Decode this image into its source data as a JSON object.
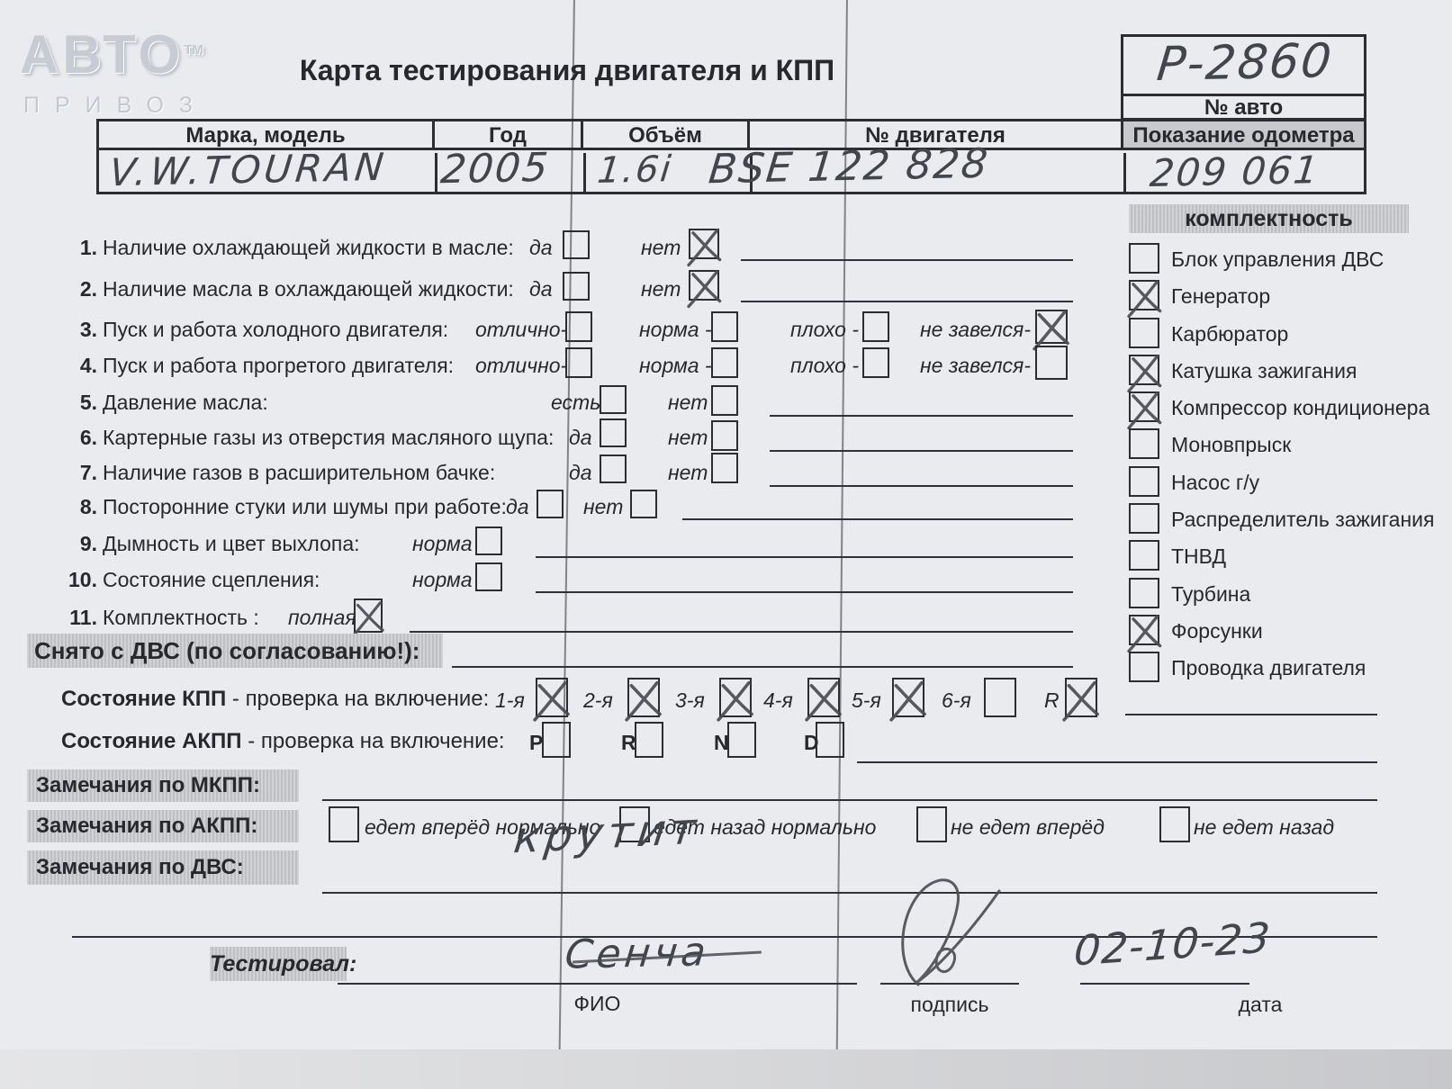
{
  "logo": {
    "name": "АВТО",
    "tm": "ТМ",
    "sub": "ПРИВОЗ"
  },
  "title": "Карта тестирования двигателя и КПП",
  "auto_number": {
    "value": "Р-2860",
    "label": "№ авто"
  },
  "vehicle": {
    "brand_header": "Марка, модель",
    "brand_value": "V.W.TOURAN",
    "year_header": "Год",
    "year_value": "2005",
    "volume_header": "Объём",
    "volume_value": "1.6i",
    "engine_header": "№ двигателя",
    "engine_value": "BSE 122 828",
    "odometer_header": "Показание одометра",
    "odometer_value": "209 061"
  },
  "checklist": [
    {
      "num": "1.",
      "label": "Наличие охлаждающей жидкости в масле:",
      "opt1": "да",
      "opt2": "нет",
      "checked1": false,
      "checked2": true
    },
    {
      "num": "2.",
      "label": "Наличие масла в охлаждающей жидкости:",
      "opt1": "да",
      "opt2": "нет",
      "checked1": false,
      "checked2": true
    },
    {
      "num": "3.",
      "label": "Пуск и работа холодного двигателя:",
      "opt1": "отлично-",
      "opt2": "норма -",
      "opt3": "плохо -",
      "opt4": "не завелся-",
      "checked1": false,
      "checked2": false,
      "checked3": false,
      "checked4": true
    },
    {
      "num": "4.",
      "label": "Пуск и работа прогретого двигателя:",
      "opt1": "отлично-",
      "opt2": "норма -",
      "opt3": "плохо -",
      "opt4": "не завелся-",
      "checked1": false,
      "checked2": false,
      "checked3": false,
      "checked4": false
    },
    {
      "num": "5.",
      "label": "Давление масла:",
      "opt1": "есть",
      "opt2": "нет",
      "checked1": false,
      "checked2": false
    },
    {
      "num": "6.",
      "label": "Картерные газы из отверстия масляного щупа:",
      "opt1": "да",
      "opt2": "нет",
      "checked1": false,
      "checked2": false
    },
    {
      "num": "7.",
      "label": "Наличие газов в расширительном бачке:",
      "opt1": "да",
      "opt2": "нет",
      "checked1": false,
      "checked2": false
    },
    {
      "num": "8.",
      "label": "Посторонние стуки или шумы при работе:",
      "opt1": "да",
      "opt2": "нет",
      "checked1": false,
      "checked2": false
    },
    {
      "num": "9.",
      "label": "Дымность и цвет выхлопа:",
      "opt1": "норма",
      "checked1": false
    },
    {
      "num": "10.",
      "label": "Состояние сцепления:",
      "opt1": "норма",
      "checked1": false
    },
    {
      "num": "11.",
      "label": "Комплектность :",
      "opt1": "полная",
      "checked1": true
    }
  ],
  "equipment": {
    "header": "комплектность",
    "items": [
      {
        "label": "Блок управления ДВС",
        "checked": false
      },
      {
        "label": "Генератор",
        "checked": true
      },
      {
        "label": "Карбюратор",
        "checked": false
      },
      {
        "label": "Катушка зажигания",
        "checked": true
      },
      {
        "label": "Компрессор кондиционера",
        "checked": true
      },
      {
        "label": "Моновпрыск",
        "checked": false
      },
      {
        "label": "Насос г/у",
        "checked": false
      },
      {
        "label": "Распределитель зажигания",
        "checked": false
      },
      {
        "label": "ТНВД",
        "checked": false
      },
      {
        "label": "Турбина",
        "checked": false
      },
      {
        "label": "Форсунки",
        "checked": true
      },
      {
        "label": "Проводка двигателя",
        "checked": false
      }
    ]
  },
  "removed": {
    "label": "Снято с ДВС (по согласованию!):"
  },
  "kpp": {
    "bold": "Состояние КПП",
    "rest": " - проверка на включение:",
    "gears": [
      {
        "label": "1-я",
        "checked": true
      },
      {
        "label": "2-я",
        "checked": true
      },
      {
        "label": "3-я",
        "checked": true
      },
      {
        "label": "4-я",
        "checked": true
      },
      {
        "label": "5-я",
        "checked": true
      },
      {
        "label": "6-я",
        "checked": false
      },
      {
        "label": "R",
        "checked": true
      }
    ]
  },
  "akpp": {
    "bold": "Состояние АКПП",
    "rest": " - проверка на включение:",
    "gears": [
      {
        "label": "P",
        "checked": false
      },
      {
        "label": "R",
        "checked": false
      },
      {
        "label": "N",
        "checked": false
      },
      {
        "label": "D",
        "checked": false
      }
    ]
  },
  "remarks_mkpp": {
    "label": "Замечания по МКПП:"
  },
  "remarks_akpp": {
    "label": "Замечания по АКПП:",
    "options": [
      {
        "label": "едет вперёд нормально",
        "checked": false
      },
      {
        "label": "едет назад нормально",
        "checked": false
      },
      {
        "label": "не едет вперёд",
        "checked": false
      },
      {
        "label": "не едет назад",
        "checked": false
      }
    ]
  },
  "remarks_dvs": {
    "label": "Замечания по ДВС:",
    "note": "крутит"
  },
  "footer": {
    "tested_label": "Тестировал:",
    "fio_value": "Сенча",
    "fio_label": "ФИО",
    "sign_label": "подпись",
    "date_value": "02-10-23",
    "date_label": "дата"
  }
}
